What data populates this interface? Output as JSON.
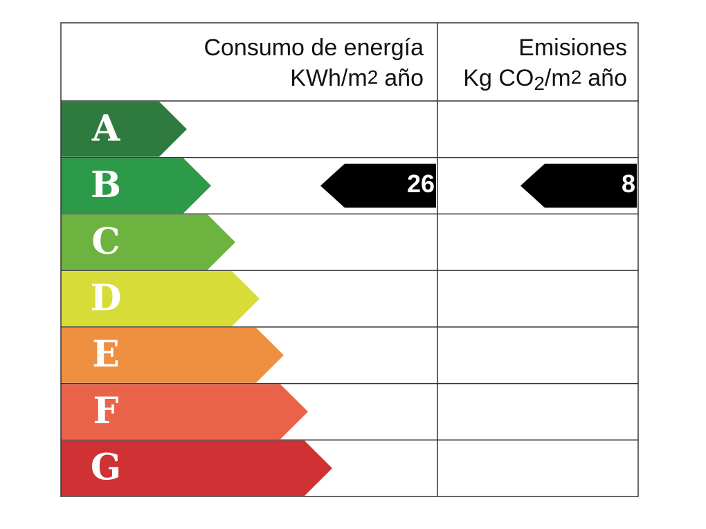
{
  "header": {
    "energy": {
      "title": "Consumo de energía",
      "unit": [
        "KWh/m",
        "2",
        "año"
      ]
    },
    "emissions": {
      "title": "Emisiones",
      "unit": [
        "Kg CO",
        "2",
        "/m",
        "2",
        "año"
      ]
    }
  },
  "rows": [
    {
      "label": "A",
      "color": "#2e7a3f"
    },
    {
      "label": "B",
      "color": "#2c9a48",
      "consumo": 26,
      "emisiones": 8
    },
    {
      "label": "C",
      "color": "#6db33f"
    },
    {
      "label": "D",
      "color": "#d7dc39"
    },
    {
      "label": "E",
      "color": "#ef8f40"
    },
    {
      "label": "F",
      "color": "#e9634b"
    },
    {
      "label": "G",
      "color": "#cf3134"
    }
  ]
}
